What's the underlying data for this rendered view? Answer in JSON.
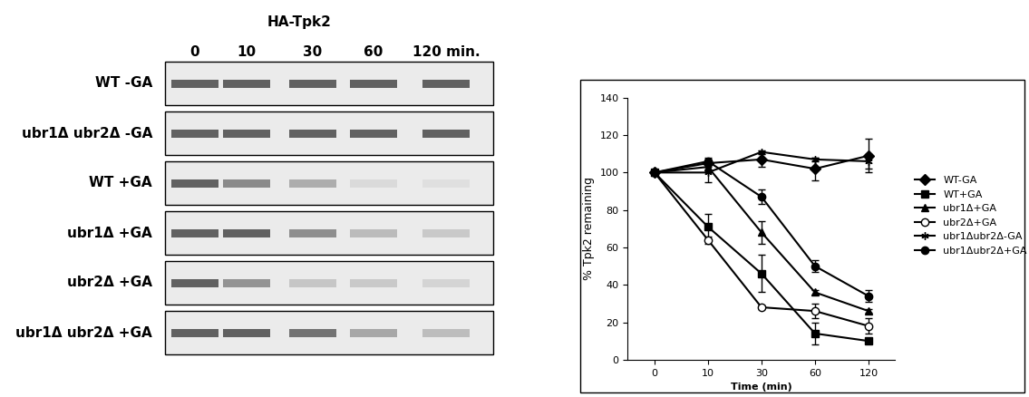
{
  "blot": {
    "title": "HA-Tpk2",
    "lanes": [
      "0",
      "10",
      "30",
      "60",
      "120 min."
    ],
    "rows": [
      "WT -GA",
      "ubr1Δ ubr2Δ -GA",
      "WT +GA",
      "ubr1Δ +GA",
      "ubr2Δ +GA",
      "ubr1Δ ubr2Δ +GA"
    ]
  },
  "chart_data": {
    "type": "line",
    "categories": [
      "0",
      "10",
      "30",
      "60",
      "120"
    ],
    "x_label": "Time (min)",
    "y_label": "% Tpk2 remaining",
    "ylim": [
      0,
      140
    ],
    "yticks": [
      0,
      20,
      40,
      60,
      80,
      100,
      120,
      140
    ],
    "grid": false,
    "legend": "right",
    "series": [
      {
        "name": "WT-GA",
        "color": "#000000",
        "marker": "diamond",
        "values": [
          100,
          105,
          107,
          102,
          109
        ],
        "errors": [
          0,
          2,
          4,
          6,
          9
        ]
      },
      {
        "name": "WT+GA",
        "color": "#000000",
        "marker": "square",
        "values": [
          100,
          71,
          46,
          14,
          10
        ],
        "errors": [
          0,
          7,
          10,
          6,
          1
        ]
      },
      {
        "name": "ubr1Δ+GA",
        "color": "#000000",
        "marker": "triangle",
        "values": [
          100,
          103,
          68,
          36,
          26
        ],
        "errors": [
          0,
          3,
          6,
          1,
          1
        ]
      },
      {
        "name": "ubr2Δ+GA",
        "color": "#000000",
        "marker": "circle_open",
        "values": [
          100,
          64,
          28,
          26,
          18
        ],
        "errors": [
          0,
          2,
          1,
          4,
          4
        ]
      },
      {
        "name": "ubr1Δubr2Δ-GA",
        "color": "#000000",
        "marker": "asterisk",
        "values": [
          100,
          100,
          111,
          107,
          106
        ],
        "errors": [
          0,
          5,
          1,
          1,
          4
        ]
      },
      {
        "name": "ubr1Δubr2Δ+GA",
        "color": "#000000",
        "marker": "circle",
        "values": [
          100,
          106,
          87,
          50,
          34
        ],
        "errors": [
          0,
          2,
          4,
          3,
          3
        ]
      }
    ]
  }
}
